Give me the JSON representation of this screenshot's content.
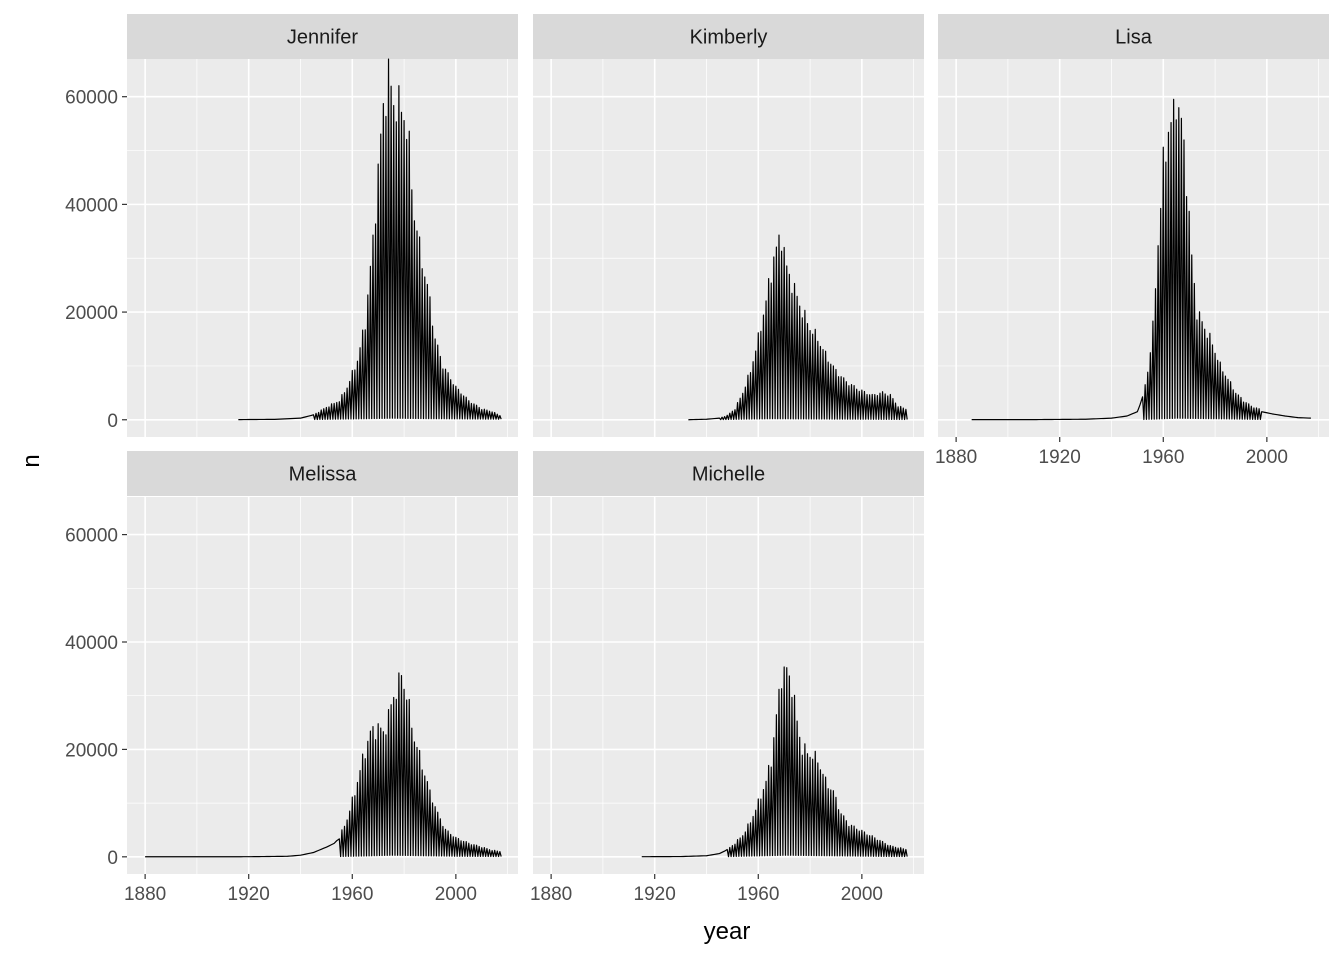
{
  "chart_data": {
    "type": "line",
    "facet_layout": "wrap-3-columns",
    "xlabel": "year",
    "ylabel": "n",
    "xlim": [
      1873,
      2024
    ],
    "ylim": [
      -3200,
      67000
    ],
    "x_ticks": [
      1880,
      1920,
      1960,
      2000
    ],
    "y_ticks": [
      0,
      20000,
      40000,
      60000
    ],
    "grid": true,
    "colors": {
      "panel_bg": "#ebebeb",
      "strip_bg": "#d9d9d9",
      "grid": "#ffffff",
      "line": "#000000"
    },
    "line_note": "each facet joins yearly counts of both sexes in year order, so the line zig-zags between a large and a near-zero value",
    "facets": [
      {
        "name": "Jennifer",
        "first_year": 1916,
        "last_year": 2017,
        "zigzag_from": 1945,
        "main": [
          [
            1916,
            30
          ],
          [
            1930,
            80
          ],
          [
            1940,
            300
          ],
          [
            1945,
            900
          ],
          [
            1950,
            2300
          ],
          [
            1955,
            3500
          ],
          [
            1958,
            6000
          ],
          [
            1962,
            11000
          ],
          [
            1965,
            18000
          ],
          [
            1968,
            33000
          ],
          [
            1970,
            46000
          ],
          [
            1972,
            58000
          ],
          [
            1974,
            63500
          ],
          [
            1976,
            59000
          ],
          [
            1978,
            58000
          ],
          [
            1980,
            57000
          ],
          [
            1982,
            50000
          ],
          [
            1984,
            38000
          ],
          [
            1986,
            32000
          ],
          [
            1988,
            27000
          ],
          [
            1990,
            22000
          ],
          [
            1992,
            15000
          ],
          [
            1995,
            10000
          ],
          [
            2000,
            6000
          ],
          [
            2005,
            3500
          ],
          [
            2010,
            2000
          ],
          [
            2014,
            1500
          ],
          [
            2017,
            800
          ]
        ],
        "low": [
          [
            1945,
            50
          ],
          [
            1960,
            150
          ],
          [
            1975,
            300
          ],
          [
            1990,
            200
          ],
          [
            2017,
            100
          ]
        ]
      },
      {
        "name": "Kimberly",
        "first_year": 1933,
        "last_year": 2017,
        "zigzag_from": 1945,
        "main": [
          [
            1933,
            10
          ],
          [
            1940,
            100
          ],
          [
            1945,
            300
          ],
          [
            1948,
            800
          ],
          [
            1951,
            2000
          ],
          [
            1954,
            5000
          ],
          [
            1957,
            9000
          ],
          [
            1960,
            15000
          ],
          [
            1963,
            22000
          ],
          [
            1966,
            30000
          ],
          [
            1968,
            33000
          ],
          [
            1969,
            34000
          ],
          [
            1971,
            28000
          ],
          [
            1974,
            24000
          ],
          [
            1977,
            20000
          ],
          [
            1980,
            17000
          ],
          [
            1983,
            15000
          ],
          [
            1986,
            12000
          ],
          [
            1990,
            9000
          ],
          [
            1994,
            7000
          ],
          [
            1999,
            5500
          ],
          [
            2004,
            4500
          ],
          [
            2008,
            5000
          ],
          [
            2011,
            4500
          ],
          [
            2014,
            2500
          ],
          [
            2017,
            2000
          ]
        ],
        "low": [
          [
            1945,
            30
          ],
          [
            1965,
            200
          ],
          [
            1980,
            150
          ],
          [
            2017,
            50
          ]
        ]
      },
      {
        "name": "Lisa",
        "first_year": 1886,
        "last_year": 2017,
        "zigzag_from": 1952,
        "main": [
          [
            1886,
            20
          ],
          [
            1910,
            30
          ],
          [
            1930,
            100
          ],
          [
            1940,
            300
          ],
          [
            1946,
            700
          ],
          [
            1950,
            1500
          ],
          [
            1952,
            4000
          ],
          [
            1954,
            9000
          ],
          [
            1956,
            17000
          ],
          [
            1958,
            33000
          ],
          [
            1960,
            47000
          ],
          [
            1962,
            54000
          ],
          [
            1964,
            56000
          ],
          [
            1965,
            60000
          ],
          [
            1967,
            55000
          ],
          [
            1969,
            45000
          ],
          [
            1971,
            30000
          ],
          [
            1973,
            20000
          ],
          [
            1976,
            17000
          ],
          [
            1979,
            14000
          ],
          [
            1982,
            10000
          ],
          [
            1985,
            7500
          ],
          [
            1988,
            5000
          ],
          [
            1991,
            3500
          ],
          [
            1994,
            2500
          ],
          [
            1998,
            1800
          ]
        ],
        "tail": [
          [
            1998,
            1500
          ],
          [
            2002,
            1100
          ],
          [
            2007,
            700
          ],
          [
            2012,
            400
          ],
          [
            2017,
            300
          ]
        ],
        "low": [
          [
            1952,
            50
          ],
          [
            1965,
            300
          ],
          [
            1998,
            50
          ]
        ]
      },
      {
        "name": "Melissa",
        "first_year": 1880,
        "last_year": 2017,
        "zigzag_from": 1955,
        "main": [
          [
            1880,
            10
          ],
          [
            1900,
            10
          ],
          [
            1920,
            20
          ],
          [
            1935,
            100
          ],
          [
            1940,
            300
          ],
          [
            1945,
            800
          ],
          [
            1950,
            1800
          ],
          [
            1953,
            2500
          ],
          [
            1955,
            3500
          ],
          [
            1958,
            7000
          ],
          [
            1961,
            12000
          ],
          [
            1964,
            18000
          ],
          [
            1967,
            23000
          ],
          [
            1970,
            24000
          ],
          [
            1972,
            23000
          ],
          [
            1974,
            26000
          ],
          [
            1976,
            30000
          ],
          [
            1978,
            32000
          ],
          [
            1979,
            34000
          ],
          [
            1981,
            30000
          ],
          [
            1984,
            22000
          ],
          [
            1987,
            17000
          ],
          [
            1990,
            12000
          ],
          [
            1993,
            8000
          ],
          [
            1996,
            5000
          ],
          [
            2000,
            3500
          ],
          [
            2005,
            2500
          ],
          [
            2010,
            1800
          ],
          [
            2014,
            1200
          ],
          [
            2017,
            1000
          ]
        ],
        "low": [
          [
            1955,
            50
          ],
          [
            1975,
            300
          ],
          [
            2000,
            100
          ],
          [
            2017,
            50
          ]
        ]
      },
      {
        "name": "Michelle",
        "first_year": 1915,
        "last_year": 2017,
        "zigzag_from": 1948,
        "main": [
          [
            1915,
            20
          ],
          [
            1930,
            50
          ],
          [
            1940,
            200
          ],
          [
            1945,
            600
          ],
          [
            1948,
            1300
          ],
          [
            1951,
            2500
          ],
          [
            1954,
            4000
          ],
          [
            1957,
            6500
          ],
          [
            1960,
            10000
          ],
          [
            1963,
            14000
          ],
          [
            1965,
            18000
          ],
          [
            1967,
            26000
          ],
          [
            1969,
            34000
          ],
          [
            1971,
            34500
          ],
          [
            1973,
            32000
          ],
          [
            1975,
            25000
          ],
          [
            1977,
            20000
          ],
          [
            1980,
            19000
          ],
          [
            1983,
            18000
          ],
          [
            1986,
            14000
          ],
          [
            1989,
            12000
          ],
          [
            1992,
            8000
          ],
          [
            1995,
            6000
          ],
          [
            1999,
            5000
          ],
          [
            2003,
            4000
          ],
          [
            2007,
            3000
          ],
          [
            2011,
            2000
          ],
          [
            2014,
            1700
          ],
          [
            2017,
            1400
          ]
        ],
        "low": [
          [
            1948,
            30
          ],
          [
            1970,
            300
          ],
          [
            2012,
            50
          ]
        ]
      }
    ]
  }
}
